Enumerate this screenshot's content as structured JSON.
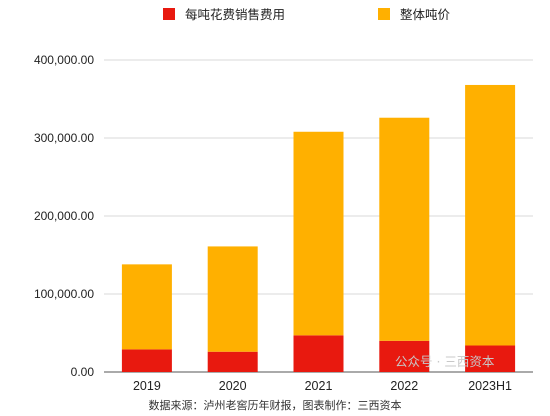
{
  "chart_data": {
    "type": "bar",
    "stacked": true,
    "categories": [
      "2019",
      "2020",
      "2021",
      "2022",
      "2023H1"
    ],
    "series": [
      {
        "name": "每吨花费销售费用",
        "color": "#e8190f",
        "values": [
          29000,
          26000,
          47000,
          40000,
          34000
        ]
      },
      {
        "name": "整体吨价",
        "color": "#ffb000",
        "values": [
          109000,
          135000,
          261000,
          286000,
          334000
        ]
      }
    ],
    "totals": [
      138000,
      161000,
      308000,
      326000,
      368000
    ],
    "ylim": [
      0,
      400000
    ],
    "yticks": [
      "0.00",
      "100,000.00",
      "200,000.00",
      "300,000.00",
      "400,000.00"
    ],
    "grid": true,
    "legend_position": "top",
    "xlabel": "",
    "ylabel": ""
  },
  "source_note": "数据来源：泸州老窖历年财报，图表制作：三西资本",
  "watermark": "公众号 · 三西资本"
}
